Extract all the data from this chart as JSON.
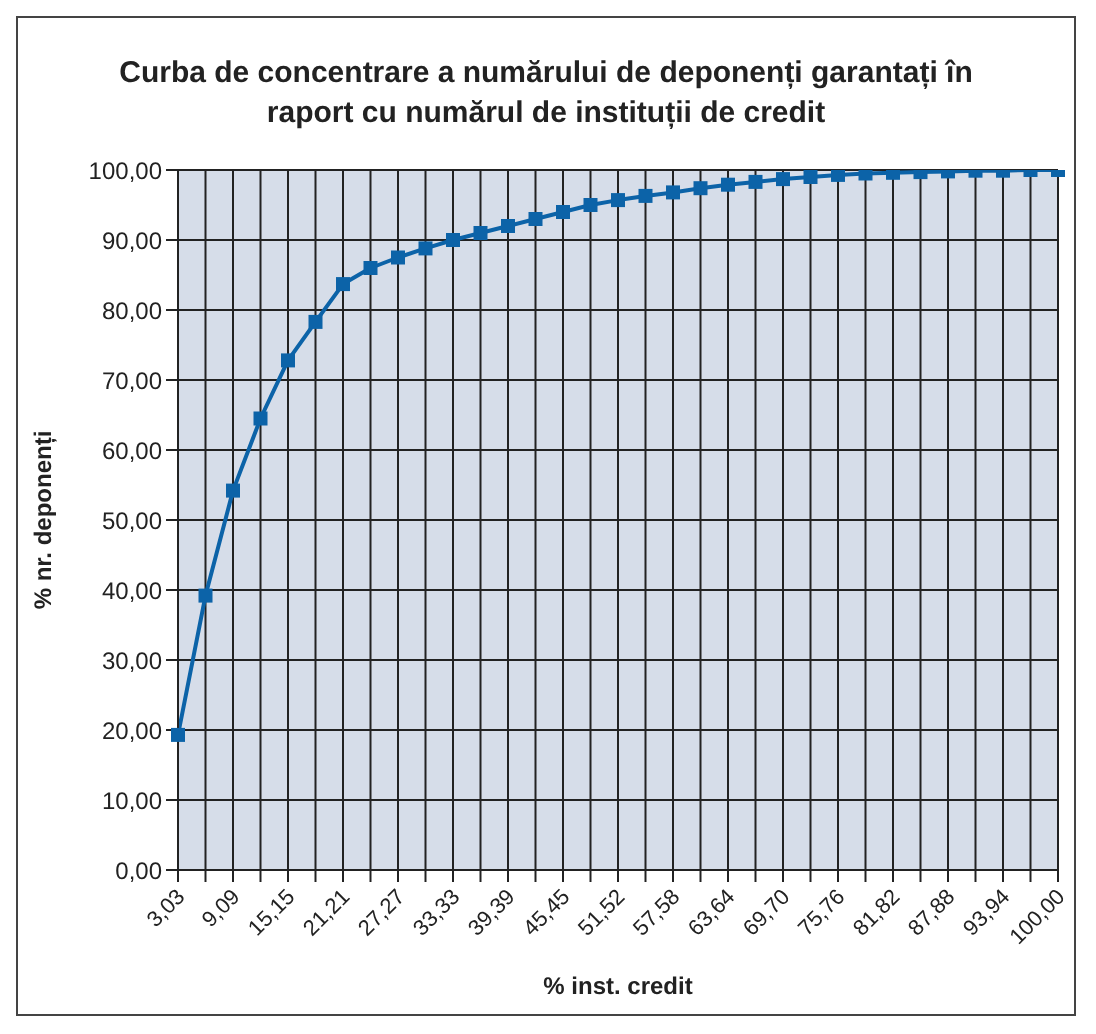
{
  "chart_data": {
    "type": "line",
    "title": "Curba de concentrare a numărului de deponenți garantați în raport cu numărul de instituții de credit",
    "xlabel": "% inst. credit",
    "ylabel": "% nr. deponenți",
    "categories": [
      "3,03",
      null,
      "9,09",
      null,
      "15,15",
      null,
      "21,21",
      null,
      "27,27",
      null,
      "33,33",
      null,
      "39,39",
      null,
      "45,45",
      null,
      "51,52",
      null,
      "57,58",
      null,
      "63,64",
      null,
      "69,70",
      null,
      "75,76",
      null,
      "81,82",
      null,
      "87,88",
      null,
      "93,94",
      null,
      "100,00"
    ],
    "series": [
      {
        "color": "#0c63a8",
        "values": [
          19.3,
          39.2,
          54.2,
          64.5,
          72.8,
          78.3,
          83.7,
          86.0,
          87.5,
          88.8,
          90.0,
          91.0,
          92.0,
          93.0,
          94.0,
          95.0,
          95.7,
          96.3,
          96.8,
          97.4,
          97.9,
          98.3,
          98.7,
          99.0,
          99.3,
          99.5,
          99.6,
          99.7,
          99.8,
          99.9,
          99.9,
          100,
          100
        ]
      }
    ],
    "ylim": [
      0,
      100
    ],
    "yticks": [
      {
        "value": 0,
        "label": "0,00"
      },
      {
        "value": 10,
        "label": "10,00"
      },
      {
        "value": 20,
        "label": "20,00"
      },
      {
        "value": 30,
        "label": "30,00"
      },
      {
        "value": 40,
        "label": "40,00"
      },
      {
        "value": 50,
        "label": "50,00"
      },
      {
        "value": 60,
        "label": "60,00"
      },
      {
        "value": 70,
        "label": "70,00"
      },
      {
        "value": 80,
        "label": "80,00"
      },
      {
        "value": 90,
        "label": "90,00"
      },
      {
        "value": 100,
        "label": "100,00"
      }
    ],
    "grid": true,
    "legend": false,
    "marker": "square",
    "line_style": "solid"
  }
}
